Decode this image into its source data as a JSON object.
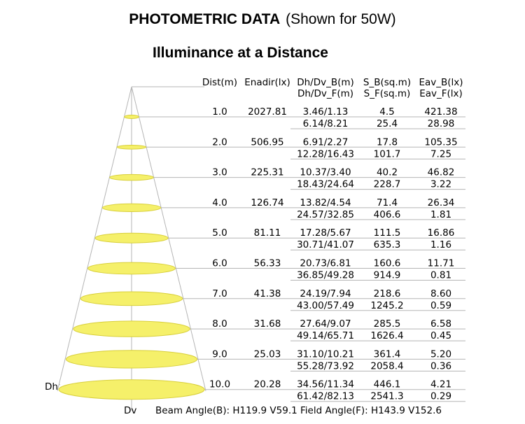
{
  "title": {
    "main": "PHOTOMETRIC DATA",
    "note": "(Shown for 50W)"
  },
  "subtitle": "Illuminance at a Distance",
  "labels": {
    "dh": "Dh",
    "dv": "Dv"
  },
  "footer": "Beam Angle(B): H119.9 V59.1  Field Angle(F): H143.9 V152.6",
  "colors": {
    "ellipse_fill": "#f5f06a",
    "ellipse_stroke": "#d8cf3a",
    "lines": "#b5b5b5"
  },
  "chart_data": {
    "type": "table",
    "headers": [
      [
        "Dist(m)",
        "Enadir(lx)",
        "Dh/Dv_B(m)",
        "S_B(sq.m)",
        "Eav_B(lx)"
      ],
      [
        "",
        "",
        "Dh/Dv_F(m)",
        "S_F(sq.m)",
        "Eav_F(lx)"
      ]
    ],
    "rows": [
      {
        "dist": "1.0",
        "enadir": "2027.81",
        "beam": "3.46/1.13",
        "s_b": "4.5",
        "eav_b": "421.38",
        "field": "6.14/8.21",
        "s_f": "25.4",
        "eav_f": "28.98"
      },
      {
        "dist": "2.0",
        "enadir": "506.95",
        "beam": "6.91/2.27",
        "s_b": "17.8",
        "eav_b": "105.35",
        "field": "12.28/16.43",
        "s_f": "101.7",
        "eav_f": "7.25"
      },
      {
        "dist": "3.0",
        "enadir": "225.31",
        "beam": "10.37/3.40",
        "s_b": "40.2",
        "eav_b": "46.82",
        "field": "18.43/24.64",
        "s_f": "228.7",
        "eav_f": "3.22"
      },
      {
        "dist": "4.0",
        "enadir": "126.74",
        "beam": "13.82/4.54",
        "s_b": "71.4",
        "eav_b": "26.34",
        "field": "24.57/32.85",
        "s_f": "406.6",
        "eav_f": "1.81"
      },
      {
        "dist": "5.0",
        "enadir": "81.11",
        "beam": "17.28/5.67",
        "s_b": "111.5",
        "eav_b": "16.86",
        "field": "30.71/41.07",
        "s_f": "635.3",
        "eav_f": "1.16"
      },
      {
        "dist": "6.0",
        "enadir": "56.33",
        "beam": "20.73/6.81",
        "s_b": "160.6",
        "eav_b": "11.71",
        "field": "36.85/49.28",
        "s_f": "914.9",
        "eav_f": "0.81"
      },
      {
        "dist": "7.0",
        "enadir": "41.38",
        "beam": "24.19/7.94",
        "s_b": "218.6",
        "eav_b": "8.60",
        "field": "43.00/57.49",
        "s_f": "1245.2",
        "eav_f": "0.59"
      },
      {
        "dist": "8.0",
        "enadir": "31.68",
        "beam": "27.64/9.07",
        "s_b": "285.5",
        "eav_b": "6.58",
        "field": "49.14/65.71",
        "s_f": "1626.4",
        "eav_f": "0.45"
      },
      {
        "dist": "9.0",
        "enadir": "25.03",
        "beam": "31.10/10.21",
        "s_b": "361.4",
        "eav_b": "5.20",
        "field": "55.28/73.92",
        "s_f": "2058.4",
        "eav_f": "0.36"
      },
      {
        "dist": "10.0",
        "enadir": "20.28",
        "beam": "34.56/11.34",
        "s_b": "446.1",
        "eav_b": "4.21",
        "field": "61.42/82.13",
        "s_f": "2541.3",
        "eav_f": "0.29"
      }
    ]
  }
}
